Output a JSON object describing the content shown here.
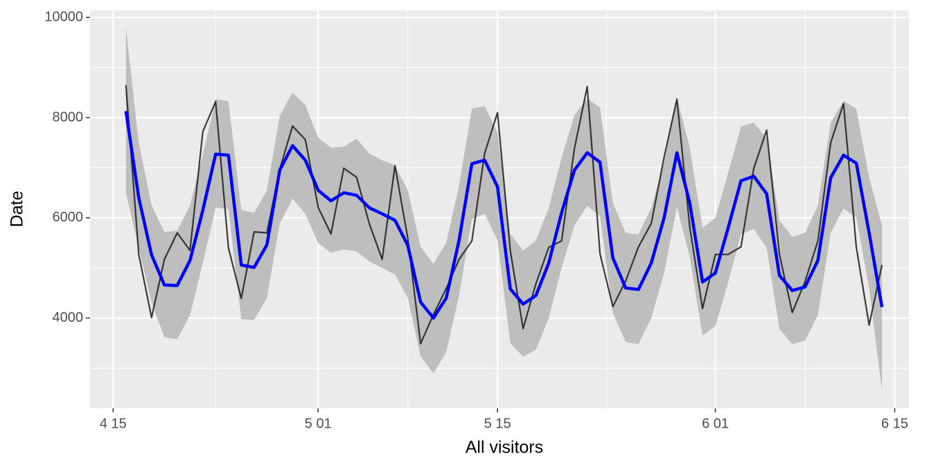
{
  "chart_data": {
    "type": "line",
    "x_label": "All visitors",
    "y_label": "Date",
    "x": [
      106,
      107,
      108,
      109,
      110,
      111,
      112,
      113,
      114,
      115,
      116,
      117,
      118,
      119,
      120,
      121,
      122,
      123,
      124,
      125,
      126,
      127,
      128,
      129,
      130,
      131,
      132,
      133,
      134,
      135,
      136,
      137,
      138,
      139,
      140,
      141,
      142,
      143,
      144,
      145,
      146,
      147,
      148,
      149,
      150,
      151,
      152,
      153,
      154,
      155,
      156,
      157,
      158,
      159,
      160,
      161,
      162,
      163,
      164,
      165
    ],
    "band": {
      "color": "#bebebe",
      "upper": [
        9800,
        7500,
        6250,
        5720,
        5740,
        6250,
        7250,
        8370,
        8330,
        6160,
        6100,
        6550,
        8040,
        8500,
        8250,
        7600,
        7400,
        7420,
        7580,
        7280,
        7150,
        7050,
        6550,
        5420,
        5080,
        5500,
        6650,
        8180,
        8230,
        7700,
        5680,
        5350,
        5550,
        6200,
        7200,
        8050,
        8380,
        8200,
        6300,
        5700,
        5670,
        6200,
        7100,
        8400,
        7400,
        5800,
        6000,
        6900,
        7820,
        7900,
        7580,
        5950,
        5620,
        5700,
        6250,
        7900,
        8330,
        8180,
        6800,
        5850
      ],
      "lower": [
        6500,
        5400,
        4300,
        3620,
        3580,
        4060,
        5100,
        6200,
        6180,
        3980,
        3960,
        4400,
        5880,
        6380,
        6080,
        5500,
        5300,
        5370,
        5330,
        5130,
        5000,
        4870,
        4400,
        3240,
        2900,
        3320,
        4450,
        5980,
        6080,
        5550,
        3500,
        3230,
        3370,
        4000,
        5000,
        5850,
        6240,
        6030,
        4100,
        3520,
        3480,
        4000,
        4900,
        6220,
        5220,
        3650,
        3840,
        4720,
        5670,
        5780,
        5400,
        3780,
        3480,
        3550,
        4060,
        5700,
        6190,
        6000,
        4600,
        2550
      ]
    },
    "series": [
      {
        "color": "#1a1a1a",
        "values": [
          8650,
          5270,
          4010,
          5170,
          5700,
          5350,
          7720,
          8320,
          5400,
          4390,
          5720,
          5700,
          6970,
          7830,
          7560,
          6210,
          5680,
          6990,
          6810,
          5880,
          5170,
          7040,
          5590,
          3490,
          4070,
          4590,
          5170,
          5540,
          7290,
          8100,
          5340,
          3790,
          4690,
          5410,
          5540,
          7380,
          8620,
          5280,
          4230,
          4740,
          5420,
          5890,
          7210,
          8370,
          5820,
          4190,
          5270,
          5270,
          5420,
          6990,
          7750,
          5270,
          4110,
          4730,
          5540,
          7500,
          8280,
          5410,
          3860,
          5060
        ]
      },
      {
        "color": "#0000ff",
        "values": [
          8130,
          6400,
          5260,
          4660,
          4650,
          5150,
          6150,
          7270,
          7250,
          5060,
          5010,
          5460,
          6950,
          7440,
          7150,
          6550,
          6340,
          6500,
          6450,
          6200,
          6080,
          5950,
          5450,
          4320,
          4000,
          4400,
          5550,
          7080,
          7150,
          6620,
          4580,
          4280,
          4450,
          5100,
          6100,
          6950,
          7300,
          7110,
          5200,
          4600,
          4570,
          5100,
          6000,
          7300,
          6300,
          4720,
          4900,
          5800,
          6740,
          6830,
          6480,
          4850,
          4550,
          4620,
          5150,
          6800,
          7250,
          7090,
          5700,
          4220
        ]
      }
    ],
    "xlim": [
      103.2,
      167.1
    ],
    "xticks": [
      {
        "value": 105,
        "label": "4 15"
      },
      {
        "value": 121,
        "label": "5 01"
      },
      {
        "value": 135,
        "label": "5 15"
      },
      {
        "value": 152,
        "label": "6 01"
      },
      {
        "value": 166,
        "label": "6 15"
      }
    ],
    "ylim": [
      2200,
      10140
    ],
    "yticks": [
      4000,
      6000,
      8000,
      10000
    ],
    "grid": true
  }
}
